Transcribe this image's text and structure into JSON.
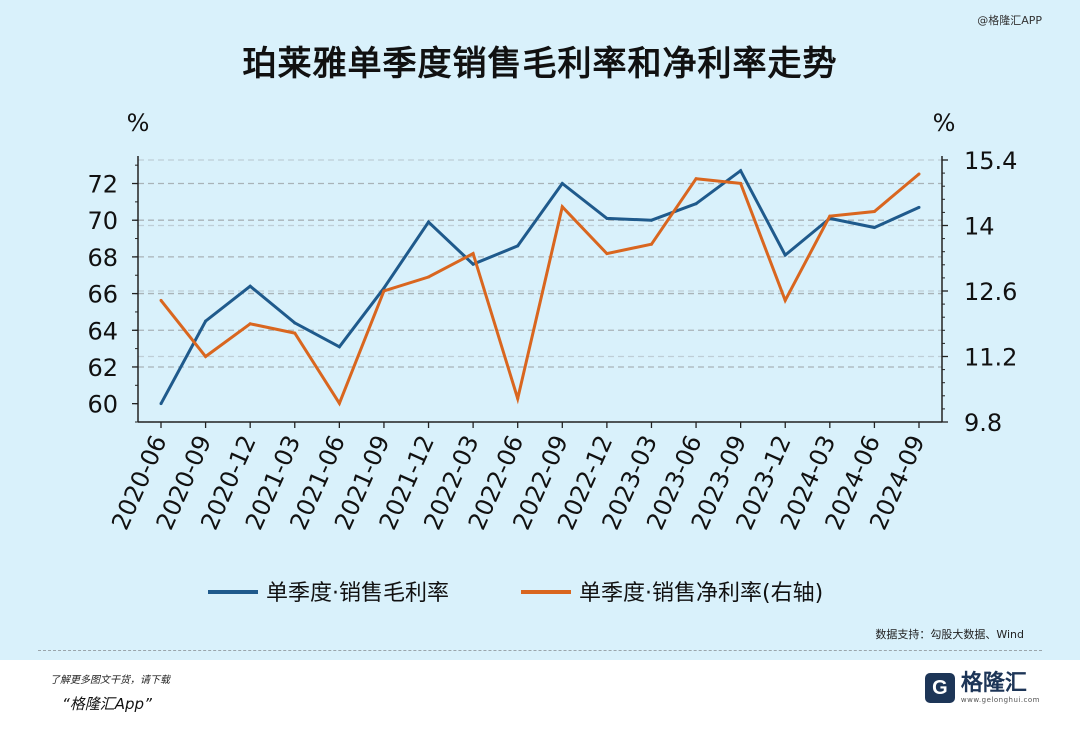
{
  "watermark_top": "@格隆汇APP",
  "title": "珀莱雅单季度销售毛利率和净利率走势",
  "source_note": "数据支持：勾股大数据、Wind",
  "footer": {
    "small_text": "了解更多图文干货，请下载",
    "app_text": "“格隆汇App”"
  },
  "brand": {
    "icon_letter": "G",
    "name": "格隆汇",
    "url": "www.gelonghui.com"
  },
  "colors": {
    "background": "#d9f1fb",
    "gross_margin": "#1f5a8c",
    "net_margin": "#d9661f",
    "axis": "#222222",
    "grid": "#a9b3b8"
  },
  "chart_data": {
    "type": "line",
    "title": "珀莱雅单季度销售毛利率和净利率走势",
    "categories": [
      "2020-06",
      "2020-09",
      "2020-12",
      "2021-03",
      "2021-06",
      "2021-09",
      "2021-12",
      "2022-03",
      "2022-06",
      "2022-09",
      "2022-12",
      "2023-03",
      "2023-06",
      "2023-09",
      "2023-12",
      "2024-03",
      "2024-06",
      "2024-09"
    ],
    "left_axis": {
      "unit": "%",
      "ylim": [
        59,
        73.5
      ],
      "ticks": [
        60,
        62,
        64,
        66,
        68,
        70,
        72
      ]
    },
    "right_axis": {
      "unit": "%",
      "ylim": [
        9.8,
        15.4
      ],
      "ticks": [
        9.8,
        11.2,
        12.6,
        14,
        15.4
      ]
    },
    "grid": true,
    "legend_position": "bottom",
    "series": [
      {
        "name": "单季度·销售毛利率",
        "axis": "left",
        "values": [
          60.0,
          64.5,
          66.4,
          64.4,
          63.1,
          66.3,
          69.9,
          67.6,
          68.6,
          72.0,
          70.1,
          70.0,
          70.9,
          72.7,
          68.1,
          70.1,
          69.6,
          70.7
        ]
      },
      {
        "name": "单季度·销售净利率(右轴)",
        "axis": "right",
        "values": [
          12.4,
          11.2,
          11.9,
          11.7,
          10.2,
          12.6,
          12.9,
          13.4,
          10.3,
          14.4,
          13.4,
          13.6,
          15.0,
          14.9,
          12.4,
          14.2,
          14.3,
          15.1
        ]
      }
    ]
  }
}
